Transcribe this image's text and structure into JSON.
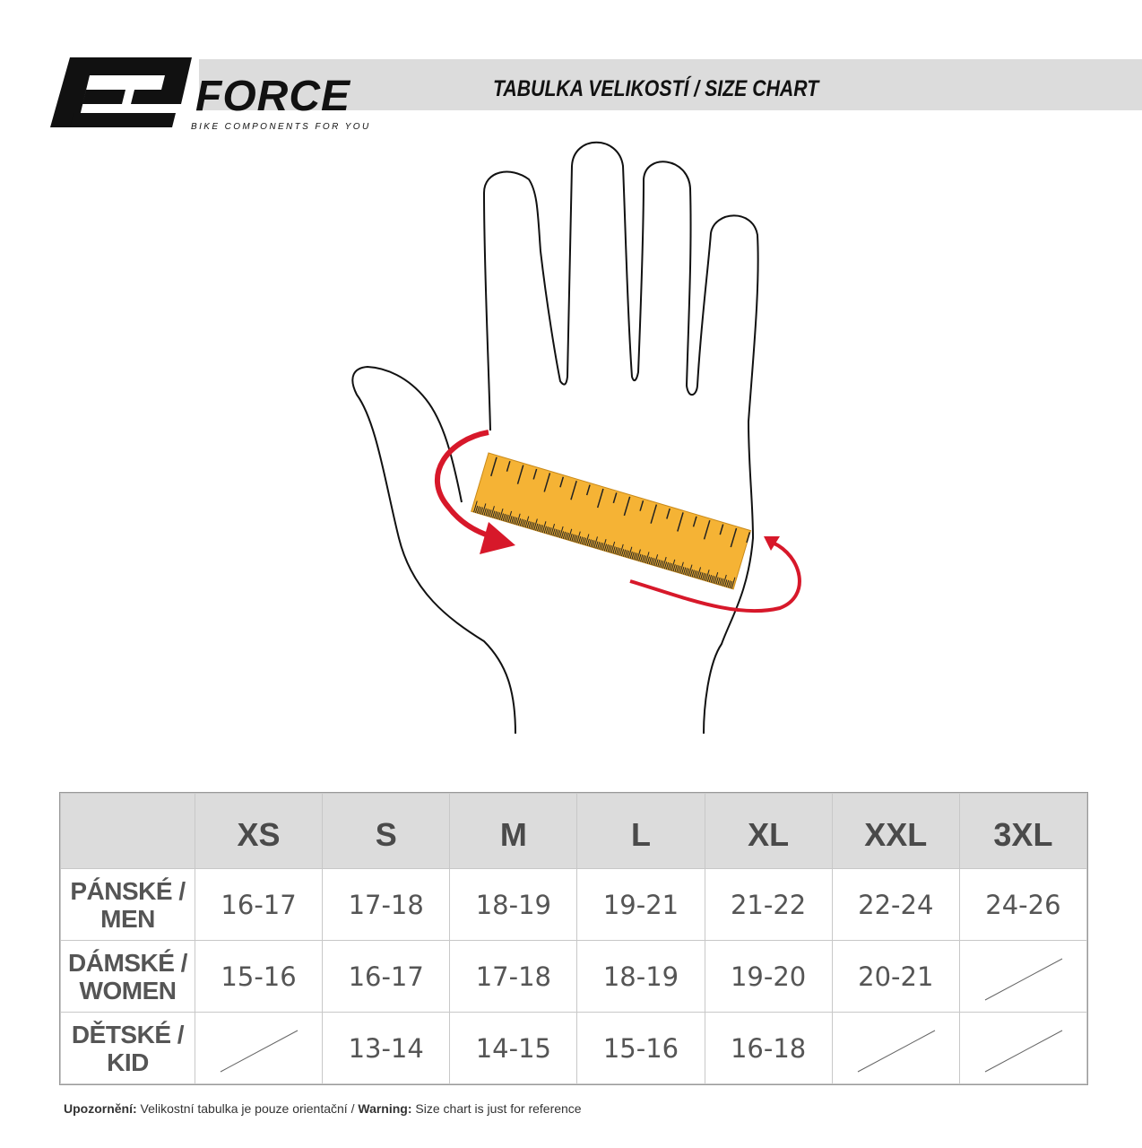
{
  "header": {
    "brand": "FORCE",
    "tagline": "BIKE COMPONENTS FOR YOU",
    "title": "TABULKA VELIKOSTÍ / SIZE CHART"
  },
  "colors": {
    "ruler": "#f5b335",
    "arrow": "#d7182a",
    "banner": "#dcdcdc"
  },
  "table": {
    "columns": [
      "",
      "XS",
      "S",
      "M",
      "L",
      "XL",
      "XXL",
      "3XL"
    ],
    "rows": [
      {
        "label1": "PÁNSKÉ /",
        "label2": "MEN",
        "values": [
          "16-17",
          "17-18",
          "18-19",
          "19-21",
          "21-22",
          "22-24",
          "24-26"
        ]
      },
      {
        "label1": "DÁMSKÉ /",
        "label2": "WOMEN",
        "values": [
          "15-16",
          "16-17",
          "17-18",
          "18-19",
          "19-20",
          "20-21",
          null
        ]
      },
      {
        "label1": "DĚTSKÉ /",
        "label2": "KID",
        "values": [
          null,
          "13-14",
          "14-15",
          "15-16",
          "16-18",
          null,
          null
        ]
      }
    ]
  },
  "footer": {
    "warning_cz_label": "Upozornění:",
    "warning_cz_text": " Velikostní tabulka je pouze orientační / ",
    "warning_en_label": "Warning:",
    "warning_en_text": " Size chart is just for reference"
  }
}
